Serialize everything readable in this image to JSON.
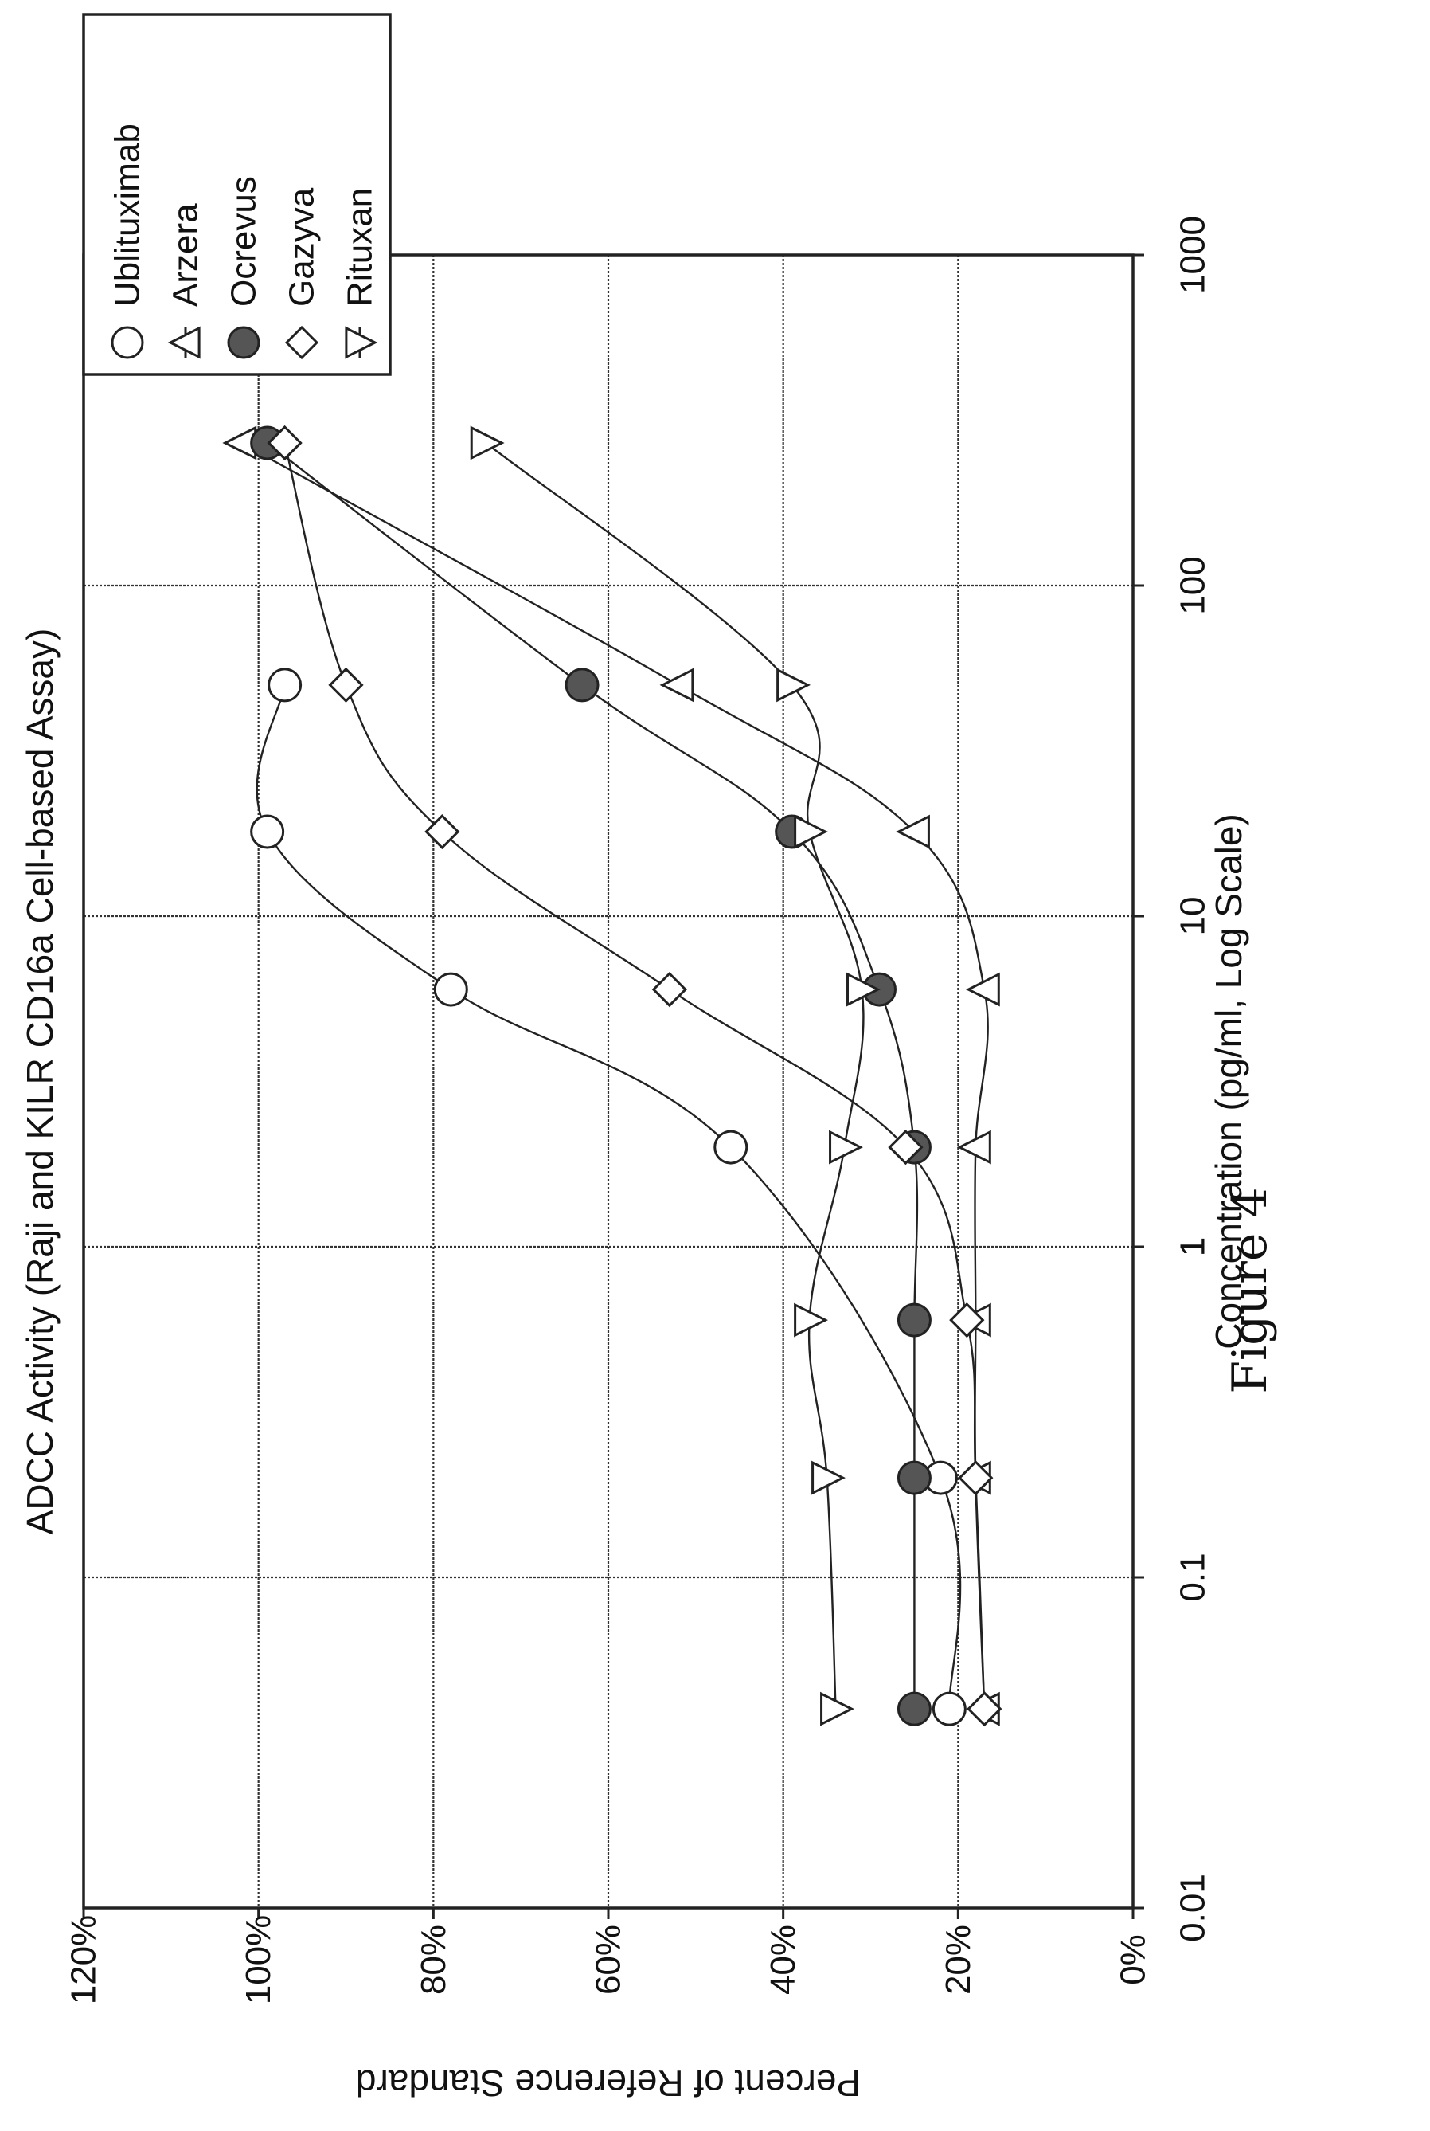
{
  "caption": "Figure 4",
  "chart_data": {
    "type": "line",
    "title": "ADCC Activity (Raji and KILR CD16a Cell-based Assay)",
    "xlabel": "Concentration (pg/ml, Log Scale)",
    "ylabel": "Percent of Reference Standard",
    "x_scale": "log",
    "xlim": [
      0.01,
      1000
    ],
    "ylim": [
      0,
      1.2
    ],
    "x_ticks": [
      0.01,
      0.1,
      1,
      10,
      100,
      1000
    ],
    "x_tick_labels": [
      "0.01",
      "0.1",
      "1",
      "10",
      "100",
      "1000"
    ],
    "y_ticks": [
      0,
      0.2,
      0.4,
      0.6,
      0.8,
      1.0,
      1.2
    ],
    "y_tick_labels": [
      "0%",
      "20%",
      "40%",
      "60%",
      "80%",
      "100%",
      "120%"
    ],
    "grid": true,
    "legend_position": "top-right",
    "colors": {
      "line": "#222222",
      "filled_marker": "#555555",
      "open_marker": "#ffffff",
      "grid": "#333333"
    },
    "series": [
      {
        "name": "Ublituximab",
        "marker": "circle",
        "filled": false,
        "x": [
          0.04,
          0.2,
          2,
          6,
          18,
          50
        ],
        "y": [
          0.21,
          0.22,
          0.46,
          0.78,
          0.99,
          0.97
        ]
      },
      {
        "name": "Arzera",
        "marker": "triangle-up",
        "filled": false,
        "x": [
          0.04,
          0.2,
          0.6,
          2,
          6,
          18,
          50,
          270
        ],
        "y": [
          0.17,
          0.18,
          0.18,
          0.18,
          0.17,
          0.25,
          0.52,
          1.02
        ]
      },
      {
        "name": "Ocrevus",
        "marker": "circle",
        "filled": true,
        "x": [
          0.04,
          0.2,
          0.6,
          2,
          6,
          18,
          50,
          270
        ],
        "y": [
          0.25,
          0.25,
          0.25,
          0.25,
          0.29,
          0.39,
          0.63,
          0.99
        ]
      },
      {
        "name": "Gazyva",
        "marker": "diamond",
        "filled": false,
        "x": [
          0.04,
          0.2,
          0.6,
          2,
          6,
          18,
          50,
          270
        ],
        "y": [
          0.17,
          0.18,
          0.19,
          0.26,
          0.53,
          0.79,
          0.9,
          0.97
        ]
      },
      {
        "name": "Rituxan",
        "marker": "triangle-down",
        "filled": false,
        "x": [
          0.04,
          0.2,
          0.6,
          2,
          6,
          18,
          50,
          270
        ],
        "y": [
          0.34,
          0.35,
          0.37,
          0.33,
          0.31,
          0.37,
          0.39,
          0.74
        ]
      }
    ]
  }
}
